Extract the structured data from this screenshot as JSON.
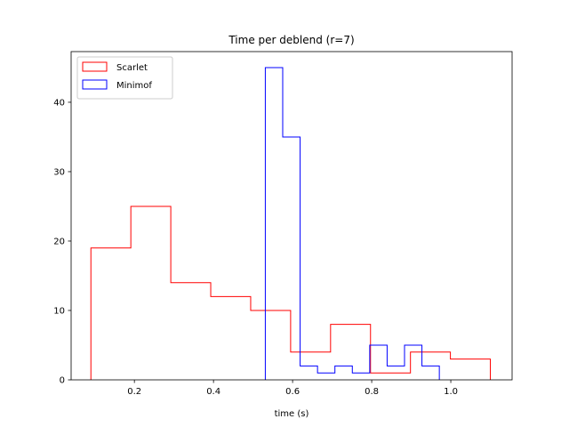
{
  "chart_data": {
    "type": "histogram-step",
    "title": "Time per deblend (r=7)",
    "xlabel": "time (s)",
    "ylabel": "",
    "xlim": [
      0.04,
      1.155
    ],
    "ylim": [
      0,
      47.3
    ],
    "xticks": [
      0.2,
      0.4,
      0.6,
      0.8,
      1.0
    ],
    "xtick_labels": [
      "0.2",
      "0.4",
      "0.6",
      "0.8",
      "1.0"
    ],
    "yticks": [
      0,
      10,
      20,
      30,
      40
    ],
    "ytick_labels": [
      "0",
      "10",
      "20",
      "30",
      "40"
    ],
    "legend_position": "top-left",
    "grid": false,
    "series": [
      {
        "name": "Scarlet",
        "color": "#ff0000",
        "bin_edges": [
          0.09,
          0.191,
          0.292,
          0.393,
          0.494,
          0.595,
          0.696,
          0.797,
          0.898,
          0.999,
          1.1
        ],
        "counts": [
          19,
          25,
          14,
          12,
          10,
          4,
          8,
          1,
          4,
          3
        ]
      },
      {
        "name": "Minimof",
        "color": "#0000ff",
        "bin_edges": [
          0.531,
          0.575,
          0.619,
          0.663,
          0.707,
          0.751,
          0.795,
          0.839,
          0.883,
          0.927,
          0.971
        ],
        "counts": [
          45,
          35,
          2,
          1,
          2,
          1,
          5,
          2,
          5,
          2
        ]
      }
    ]
  }
}
